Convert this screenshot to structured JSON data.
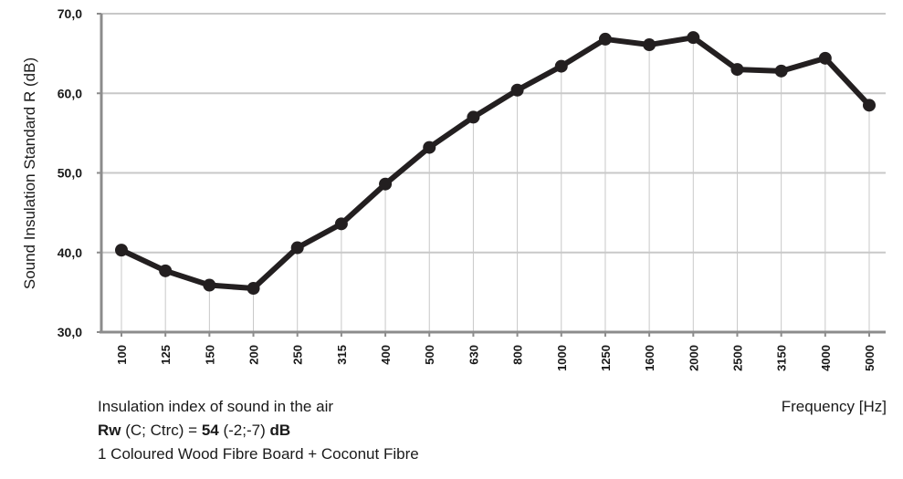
{
  "chart_data": {
    "type": "line",
    "xlabel": "Frequency [Hz]",
    "ylabel": "Sound Insulation Standard R (dB)",
    "ylim": [
      30,
      70
    ],
    "y_ticks": [
      "30,0",
      "40,0",
      "50,0",
      "60,0",
      "70,0"
    ],
    "y_tick_values": [
      30,
      40,
      50,
      60,
      70
    ],
    "grid": "horizontal and vertical",
    "categories": [
      "100",
      "125",
      "150",
      "200",
      "250",
      "315",
      "400",
      "500",
      "630",
      "800",
      "1000",
      "1250",
      "1600",
      "2000",
      "2500",
      "3150",
      "4000",
      "5000"
    ],
    "series": [
      {
        "values": [
          40.3,
          37.7,
          35.9,
          35.5,
          40.6,
          43.6,
          48.6,
          53.2,
          57.0,
          60.4,
          63.4,
          66.8,
          66.1,
          67.0,
          63.0,
          62.8,
          64.4,
          58.5
        ]
      }
    ],
    "colors": {
      "line": "#231f20",
      "grid": "#c8c8c8",
      "axis": "#8c8c8c"
    }
  },
  "caption": {
    "line1": "Insulation index of sound in the air",
    "line2_rw": "Rw",
    "line2_mid": " (C; Ctrc) = ",
    "line2_value": "54",
    "line2_terms": " (-2;-7) ",
    "line2_unit": "dB",
    "line3": "1 Coloured Wood Fibre Board + Coconut Fibre"
  }
}
